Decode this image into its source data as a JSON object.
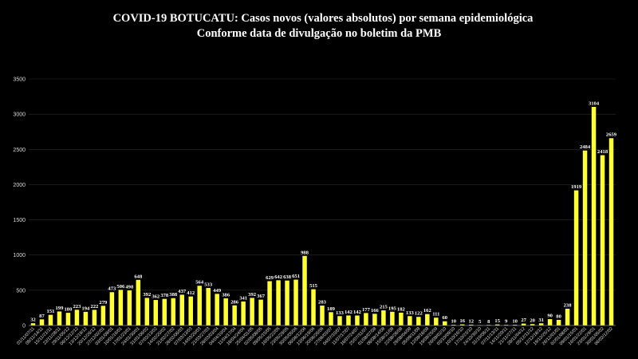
{
  "colors": {
    "background": "#000000",
    "bar": "#ffff33",
    "text": "#ffffff",
    "grid": "#2b2b2b"
  },
  "chart_data": {
    "type": "bar",
    "title": "COVID-19 BOTUCATU: Casos novos (valores absolutos) por semana epidemiológica",
    "subtitle": "Conforme data de divulgação no boletim da PMB",
    "xlabel": "",
    "ylabel": "",
    "ylim": [
      0,
      3500
    ],
    "yticks": [
      0,
      500,
      1000,
      1500,
      2000,
      2500,
      3000,
      3500
    ],
    "grid": true,
    "legend": "none",
    "categories": [
      "01/11/07/11",
      "08/11/14/11",
      "15/11/21/11",
      "22/11/28/11",
      "29/11/05/12",
      "06/12/12/12",
      "13/12/19/12",
      "20/12/26/12",
      "27/12/02/01",
      "03/01/09/01",
      "10/01/16/01",
      "17/01/23/01",
      "24/01/30/01",
      "31/01/06/02",
      "07/02/13/02",
      "14/02/20/02",
      "21/02/27/02",
      "28/02/06/03",
      "07/03/13/03",
      "14/03/20/03",
      "21/03/27/03",
      "28/03/03/04",
      "04/04/10/04",
      "11/04/17/04",
      "18/04/24/04",
      "25/04/01/05",
      "02/05/08/05",
      "09/05/15/05",
      "16/05/22/05",
      "23/05/29/05",
      "30/05/05/06",
      "06/06/12/06",
      "13/06/19/06",
      "20/06/26/06",
      "27/06/03/07",
      "04/07/10/07",
      "11/07/17/07",
      "18/07/24/07",
      "25/07/31/07",
      "01/08/07/08",
      "08/08/14/08",
      "15/08/21/08",
      "22/08/28/08",
      "29/08/04/09",
      "05/09/11/09",
      "12/09/18/09",
      "19/09/25/09",
      "26/09/02/10",
      "03/10/09/10",
      "10/10/16/10",
      "17/10/23/10",
      "24/10/30/10",
      "31/10/06/11",
      "07/11/13/11",
      "14/11/20/11",
      "21/11/27/11",
      "28/11/04/12",
      "05/12/11/12",
      "12/12/18/12",
      "19/12/25/12",
      "26/12/01/01",
      "02/01/08/01",
      "09/01/15/01",
      "16/01/22/01",
      "23/01/29/01",
      "30/01/05/02",
      "06/02/12/02"
    ],
    "values": [
      32,
      87,
      151,
      199,
      180,
      223,
      194,
      222,
      279,
      473,
      506,
      498,
      648,
      392,
      362,
      378,
      388,
      437,
      412,
      564,
      533,
      449,
      386,
      286,
      341,
      392,
      367,
      629,
      642,
      638,
      651,
      988,
      515,
      283,
      189,
      133,
      142,
      142,
      177,
      166,
      215,
      195,
      182,
      133,
      122,
      162,
      111,
      60,
      10,
      16,
      12,
      5,
      8,
      15,
      9,
      10,
      27,
      20,
      31,
      90,
      80,
      238,
      1919,
      2484,
      3104,
      2418,
      2659
    ]
  }
}
